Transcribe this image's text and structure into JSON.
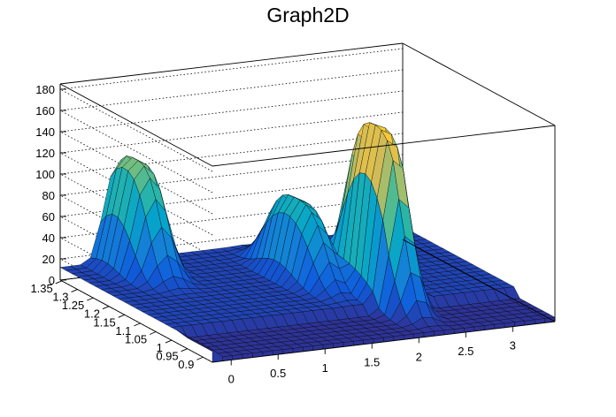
{
  "chart_data": {
    "type": "surface",
    "title": "Graph2D",
    "xlabel": "",
    "ylabel": "",
    "zlabel": "",
    "xlim": [
      -0.2,
      3.45
    ],
    "ylim": [
      0.87,
      1.355
    ],
    "zlim": [
      0,
      185
    ],
    "x_ticks": [
      "0",
      "0.5",
      "1",
      "1.5",
      "2",
      "2.5",
      "3"
    ],
    "y_ticks": [
      "0.9",
      "0.95",
      "1",
      "1.05",
      "1.1",
      "1.15",
      "1.2",
      "1.25",
      "1.3",
      "1.35"
    ],
    "z_ticks": [
      "0",
      "20",
      "40",
      "60",
      "80",
      "100",
      "120",
      "140",
      "160",
      "180"
    ],
    "grid": true,
    "palette": [
      "#352a87",
      "#0f5cdd",
      "#1481d6",
      "#06a4ca",
      "#2eb7a4",
      "#87bf77",
      "#d1bb59",
      "#fec832",
      "#f9fb0e"
    ],
    "baseline": 12,
    "peaks": [
      {
        "x": 0.45,
        "y": 1.31,
        "height": 115
      },
      {
        "x": 2.2,
        "y": 1.06,
        "height": 170
      },
      {
        "x": 1.75,
        "y": 1.18,
        "height": 85
      }
    ],
    "step": {
      "x_from": -0.1,
      "y_to": 1.0,
      "height": -8
    }
  }
}
